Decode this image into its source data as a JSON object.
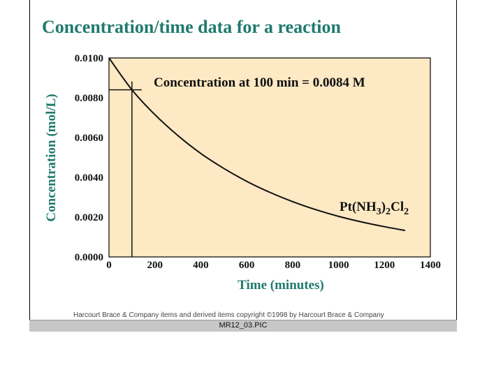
{
  "chart_data": {
    "type": "line",
    "title": "Concentration/time data for a reaction",
    "xlabel": "Time (minutes)",
    "ylabel": "Concentration (mol/L)",
    "xlim": [
      0,
      1400
    ],
    "ylim": [
      0.0,
      0.01
    ],
    "x_ticks": [
      "0",
      "200",
      "400",
      "600",
      "800",
      "1000",
      "1200",
      "1400"
    ],
    "y_ticks": [
      "0.0000",
      "0.0020",
      "0.0040",
      "0.0060",
      "0.0080",
      "0.0100"
    ],
    "series": [
      {
        "name": "Pt(NH3)2Cl2",
        "x": [
          0,
          100,
          200,
          300,
          400,
          500,
          600,
          700,
          800,
          900,
          1000,
          1100,
          1200,
          1290
        ],
        "y": [
          0.01,
          0.0084,
          0.00715,
          0.0061,
          0.0052,
          0.00445,
          0.0038,
          0.00325,
          0.00278,
          0.00238,
          0.00204,
          0.00176,
          0.00152,
          0.00133
        ]
      }
    ],
    "annotation": {
      "text": "Concentration at 100 min = 0.0084 M",
      "x": 100,
      "y": 0.0084
    },
    "series_label": {
      "base": "Pt(NH",
      "sub1": "3",
      "mid": ")",
      "sub2": "2",
      "mid2": "Cl",
      "sub3": "2"
    },
    "grid": false,
    "plot_background": "#fde9c3",
    "title_color": "#1f7a6e"
  },
  "copyright": "Harcourt Brace & Company items and derived items copyright ©1998 by Harcourt Brace & Company",
  "footer_label": "MR12_03.PIC"
}
